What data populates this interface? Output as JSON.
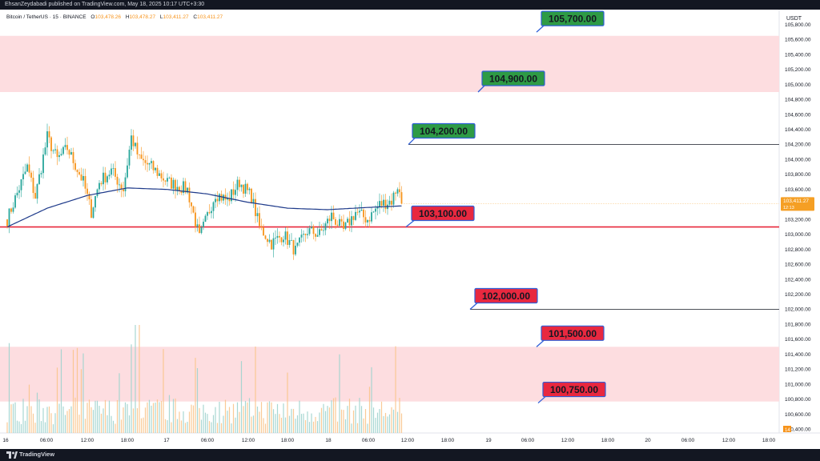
{
  "publish_line": "EhsanZeydabadi published on TradingView.com, May 18, 2025 10:17 UTC+3:30",
  "symbol": {
    "name": "Bitcoin / TetherUS · 15 · BINANCE",
    "open_label": "O",
    "open": "103,478.26",
    "high_label": "H",
    "high": "103,478.27",
    "low_label": "L",
    "low": "103,411.27",
    "close_label": "C",
    "close": "103,411.27"
  },
  "currency": "USDT",
  "current_price": {
    "value": "103,411.27",
    "countdown": "12:13",
    "color": "#f59f24"
  },
  "volume_badge": "14",
  "footer": {
    "brand": "TradingView"
  },
  "colors": {
    "up": "#26a69a",
    "down": "#f7931a",
    "ma": "#1e3a8a",
    "zone": "#fddde0",
    "support_line": "#e8273a",
    "label_green": "#2e9b45",
    "label_red": "#e8283f",
    "label_border": "#2f5fd8"
  },
  "chart_data": {
    "type": "candlestick",
    "y_axis": {
      "min": 100350,
      "max": 106000,
      "step": 200,
      "ticks": [
        "105,800.00",
        "105,600.00",
        "105,400.00",
        "105,200.00",
        "105,000.00",
        "104,800.00",
        "104,600.00",
        "104,400.00",
        "104,200.00",
        "104,000.00",
        "103,800.00",
        "103,600.00",
        "103,400.00",
        "103,200.00",
        "103,000.00",
        "102,800.00",
        "102,600.00",
        "102,400.00",
        "102,200.00",
        "102,000.00",
        "101,800.00",
        "101,600.00",
        "101,400.00",
        "101,200.00",
        "101,000.00",
        "100,800.00",
        "100,600.00",
        "100,400.00"
      ]
    },
    "x_axis": {
      "ticks": [
        "16",
        "06:00",
        "12:00",
        "18:00",
        "17",
        "06:00",
        "12:00",
        "18:00",
        "18",
        "06:00",
        "12:00",
        "18:00",
        "19",
        "06:00",
        "12:00",
        "18:00",
        "20",
        "06:00",
        "12:00",
        "18:00"
      ]
    },
    "zones": [
      {
        "from": 104900,
        "to": 105650
      },
      {
        "from": 100770,
        "to": 101500
      }
    ],
    "levels": [
      {
        "label": "105,700.00",
        "value": 105700,
        "type": "resistance",
        "line": false
      },
      {
        "label": "104,900.00",
        "value": 104900,
        "type": "resistance",
        "line": false
      },
      {
        "label": "104,200.00",
        "value": 104200,
        "type": "resistance",
        "line": true
      },
      {
        "label": "103,100.00",
        "value": 103100,
        "type": "support",
        "line": true
      },
      {
        "label": "102,000.00",
        "value": 102000,
        "type": "support",
        "line": true
      },
      {
        "label": "101,500.00",
        "value": 101500,
        "type": "support",
        "line": false
      },
      {
        "label": "100,750.00",
        "value": 100750,
        "type": "support",
        "line": false
      }
    ],
    "price_path": {
      "start": 103200,
      "anchors": [
        [
          0,
          103200
        ],
        [
          10,
          103900
        ],
        [
          14,
          103500
        ],
        [
          20,
          104300
        ],
        [
          25,
          104000
        ],
        [
          30,
          104150
        ],
        [
          38,
          103700
        ],
        [
          42,
          103300
        ],
        [
          46,
          103700
        ],
        [
          52,
          103850
        ],
        [
          58,
          103600
        ],
        [
          62,
          104300
        ],
        [
          66,
          104000
        ],
        [
          72,
          103900
        ],
        [
          80,
          103700
        ],
        [
          90,
          103600
        ],
        [
          96,
          102950
        ],
        [
          100,
          103250
        ],
        [
          104,
          103550
        ],
        [
          110,
          103450
        ],
        [
          116,
          103700
        ],
        [
          122,
          103500
        ],
        [
          126,
          103100
        ],
        [
          132,
          102880
        ],
        [
          138,
          103000
        ],
        [
          144,
          102780
        ],
        [
          150,
          103050
        ],
        [
          156,
          103000
        ],
        [
          162,
          103250
        ],
        [
          168,
          103050
        ],
        [
          174,
          103300
        ],
        [
          180,
          103200
        ],
        [
          186,
          103400
        ],
        [
          192,
          103450
        ],
        [
          195,
          103650
        ],
        [
          197,
          103420
        ]
      ],
      "last_close": 103411.27
    },
    "moving_average": [
      [
        0,
        103100
      ],
      [
        20,
        103350
      ],
      [
        40,
        103520
      ],
      [
        60,
        103620
      ],
      [
        80,
        103600
      ],
      [
        100,
        103540
      ],
      [
        120,
        103430
      ],
      [
        140,
        103350
      ],
      [
        160,
        103330
      ],
      [
        180,
        103360
      ],
      [
        197,
        103380
      ]
    ],
    "volume_scale_max": 100
  }
}
